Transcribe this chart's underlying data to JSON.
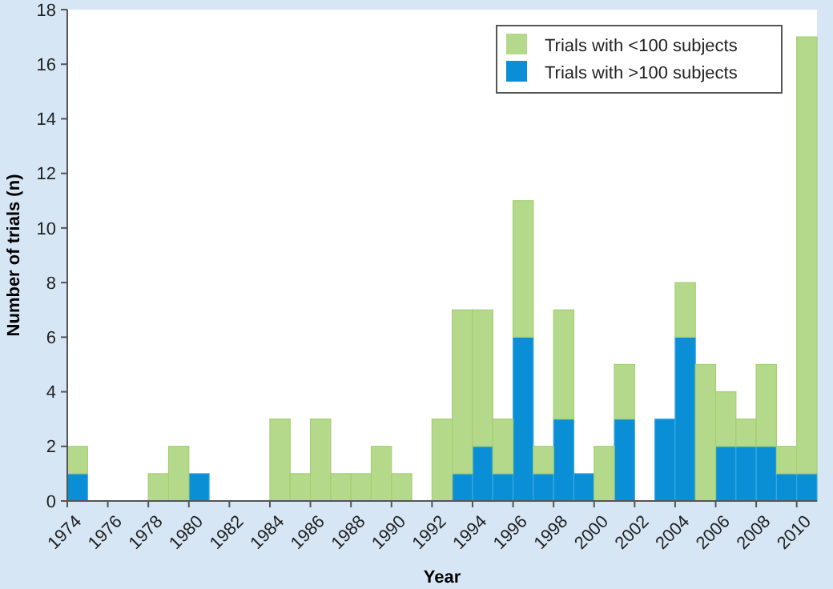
{
  "chart_data": {
    "type": "bar",
    "stacked": true,
    "xlabel": "Year",
    "ylabel": "Number of trials (n)",
    "categories": [
      "1974",
      null,
      "1976",
      null,
      "1978",
      null,
      "1980",
      null,
      "1982",
      null,
      "1984",
      null,
      "1986",
      null,
      "1988",
      null,
      "1990",
      null,
      "1992",
      null,
      "1994",
      null,
      "1996",
      null,
      "1998",
      null,
      "2000",
      null,
      "2002",
      null,
      "2004",
      null,
      "2006",
      null,
      "2008",
      null,
      "2010"
    ],
    "series": [
      {
        "name": "Trials with >100 subjects",
        "color": "#0a8fd6",
        "values": [
          1,
          0,
          0,
          0,
          0,
          0,
          1,
          0,
          0,
          0,
          0,
          0,
          0,
          0,
          0,
          0,
          0,
          0,
          0,
          1,
          2,
          1,
          6,
          1,
          3,
          1,
          0,
          3,
          0,
          3,
          6,
          0,
          2,
          2,
          2,
          1,
          1
        ]
      },
      {
        "name": "Trials with <100 subjects",
        "color": "#b5d98a",
        "values": [
          1,
          0,
          0,
          0,
          1,
          2,
          0,
          0,
          0,
          0,
          3,
          1,
          3,
          1,
          1,
          2,
          1,
          0,
          3,
          6,
          5,
          2,
          5,
          1,
          4,
          0,
          2,
          2,
          0,
          0,
          2,
          5,
          2,
          1,
          3,
          1,
          16
        ]
      }
    ],
    "ylim": [
      0,
      18
    ],
    "yticks": [
      0,
      2,
      4,
      6,
      8,
      10,
      12,
      14,
      16,
      18
    ],
    "grid": false,
    "legend": "top right"
  }
}
